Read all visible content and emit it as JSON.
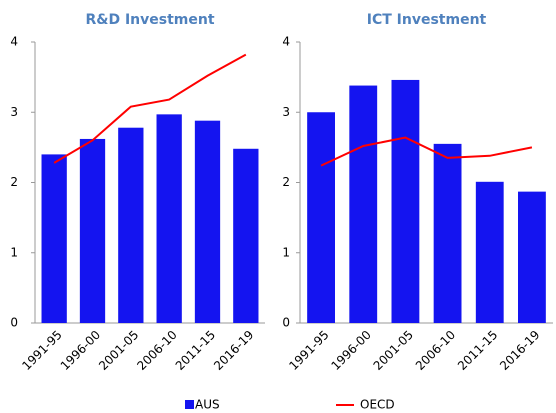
{
  "chart_data": [
    {
      "type": "bar",
      "title": "R&D Investment",
      "categories": [
        "1991-95",
        "1996-00",
        "2001-05",
        "2006-10",
        "2011-15",
        "2016-19"
      ],
      "series": [
        {
          "name": "AUS",
          "type": "bar",
          "color": "#1414f0",
          "values": [
            2.4,
            2.62,
            2.78,
            2.97,
            2.88,
            2.48
          ]
        },
        {
          "name": "OECD",
          "type": "line",
          "color": "#ff0000",
          "values": [
            2.28,
            2.6,
            3.08,
            3.18,
            3.52,
            3.82
          ]
        }
      ],
      "ylim": [
        0,
        4
      ],
      "yticks": [
        0,
        1,
        2,
        3,
        4
      ],
      "grid": false
    },
    {
      "type": "bar",
      "title": "ICT Investment",
      "categories": [
        "1991-95",
        "1996-00",
        "2001-05",
        "2006-10",
        "2011-15",
        "2016-19"
      ],
      "series": [
        {
          "name": "AUS",
          "type": "bar",
          "color": "#1414f0",
          "values": [
            3.0,
            3.38,
            3.46,
            2.55,
            2.01,
            1.87
          ]
        },
        {
          "name": "OECD",
          "type": "line",
          "color": "#ff0000",
          "values": [
            2.24,
            2.52,
            2.64,
            2.35,
            2.38,
            2.5
          ]
        }
      ],
      "ylim": [
        0,
        4
      ],
      "yticks": [
        0,
        1,
        2,
        3,
        4
      ],
      "grid": false
    }
  ]
}
